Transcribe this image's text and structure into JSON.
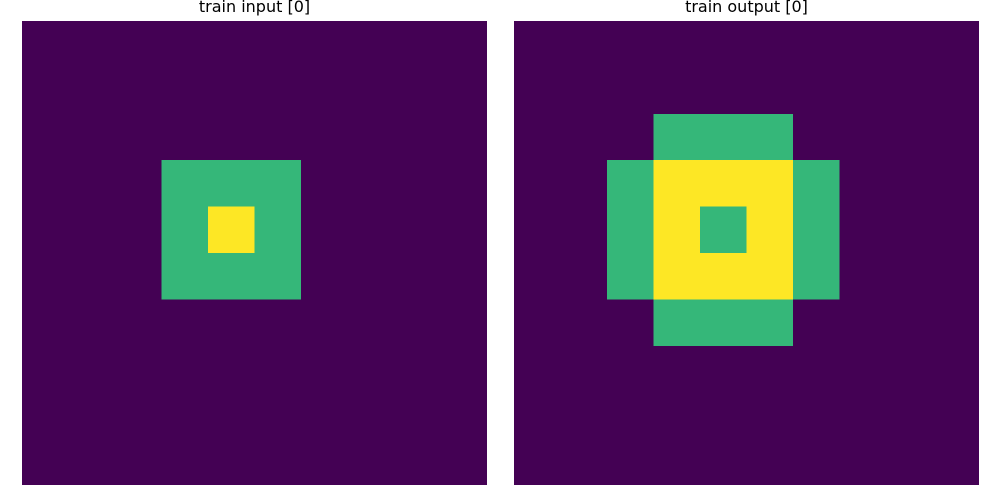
{
  "panels": [
    {
      "title": "train input [0]",
      "grid": [
        [
          0,
          0,
          0,
          0,
          0,
          0,
          0,
          0,
          0,
          0
        ],
        [
          0,
          0,
          0,
          0,
          0,
          0,
          0,
          0,
          0,
          0
        ],
        [
          0,
          0,
          0,
          0,
          0,
          0,
          0,
          0,
          0,
          0
        ],
        [
          0,
          0,
          0,
          1,
          1,
          1,
          0,
          0,
          0,
          0
        ],
        [
          0,
          0,
          0,
          1,
          2,
          1,
          0,
          0,
          0,
          0
        ],
        [
          0,
          0,
          0,
          1,
          1,
          1,
          0,
          0,
          0,
          0
        ],
        [
          0,
          0,
          0,
          0,
          0,
          0,
          0,
          0,
          0,
          0
        ],
        [
          0,
          0,
          0,
          0,
          0,
          0,
          0,
          0,
          0,
          0
        ],
        [
          0,
          0,
          0,
          0,
          0,
          0,
          0,
          0,
          0,
          0
        ],
        [
          0,
          0,
          0,
          0,
          0,
          0,
          0,
          0,
          0,
          0
        ]
      ]
    },
    {
      "title": "train output [0]",
      "grid": [
        [
          0,
          0,
          0,
          0,
          0,
          0,
          0,
          0,
          0,
          0
        ],
        [
          0,
          0,
          0,
          0,
          0,
          0,
          0,
          0,
          0,
          0
        ],
        [
          0,
          0,
          0,
          1,
          1,
          1,
          0,
          0,
          0,
          0
        ],
        [
          0,
          0,
          1,
          2,
          2,
          2,
          1,
          0,
          0,
          0
        ],
        [
          0,
          0,
          1,
          2,
          1,
          2,
          1,
          0,
          0,
          0
        ],
        [
          0,
          0,
          1,
          2,
          2,
          2,
          1,
          0,
          0,
          0
        ],
        [
          0,
          0,
          0,
          1,
          1,
          1,
          0,
          0,
          0,
          0
        ],
        [
          0,
          0,
          0,
          0,
          0,
          0,
          0,
          0,
          0,
          0
        ],
        [
          0,
          0,
          0,
          0,
          0,
          0,
          0,
          0,
          0,
          0
        ],
        [
          0,
          0,
          0,
          0,
          0,
          0,
          0,
          0,
          0,
          0
        ]
      ]
    }
  ],
  "palette": [
    "#440154",
    "#35b779",
    "#fde725"
  ]
}
